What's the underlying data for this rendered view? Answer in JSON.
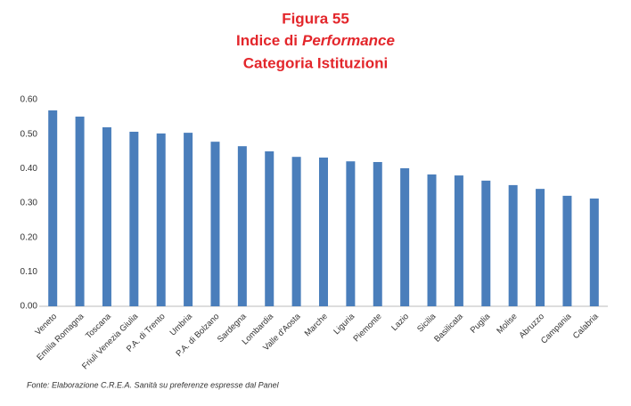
{
  "chart_data": {
    "type": "bar",
    "title": [
      "Figura 55",
      "Indice di",
      "Performance",
      "Categoria Istituzioni"
    ],
    "categories": [
      "Veneto",
      "Emilia Romagna",
      "Toscana",
      "Friuli Venezia Giulia",
      "P.A. di Trento",
      "Umbria",
      "P.A. di Bolzano",
      "Sardegna",
      "Lombardia",
      "Valle d'Aosta",
      "Marche",
      "Liguria",
      "Piemonte",
      "Lazio",
      "Sicilia",
      "Basilicata",
      "Puglia",
      "Molise",
      "Abruzzo",
      "Campania",
      "Calabria"
    ],
    "values": [
      0.569,
      0.551,
      0.52,
      0.507,
      0.502,
      0.504,
      0.478,
      0.465,
      0.45,
      0.434,
      0.432,
      0.421,
      0.419,
      0.401,
      0.383,
      0.38,
      0.365,
      0.352,
      0.341,
      0.321,
      0.313
    ],
    "color": "#4a7ebb",
    "ylim": [
      0,
      0.6
    ],
    "yticks": [
      {
        "value": 0,
        "label": "0.00"
      },
      {
        "value": 0.1,
        "label": "0.10"
      },
      {
        "value": 0.2,
        "label": "0.20"
      },
      {
        "value": 0.3,
        "label": "0.30"
      },
      {
        "value": 0.4,
        "label": "0.40"
      },
      {
        "value": 0.5,
        "label": "0.50"
      },
      {
        "value": 0.6,
        "label": "0.60"
      }
    ],
    "grid": false,
    "source": "Fonte: Elaborazione C.R.E.A. Sanità su preferenze espresse dal Panel"
  }
}
